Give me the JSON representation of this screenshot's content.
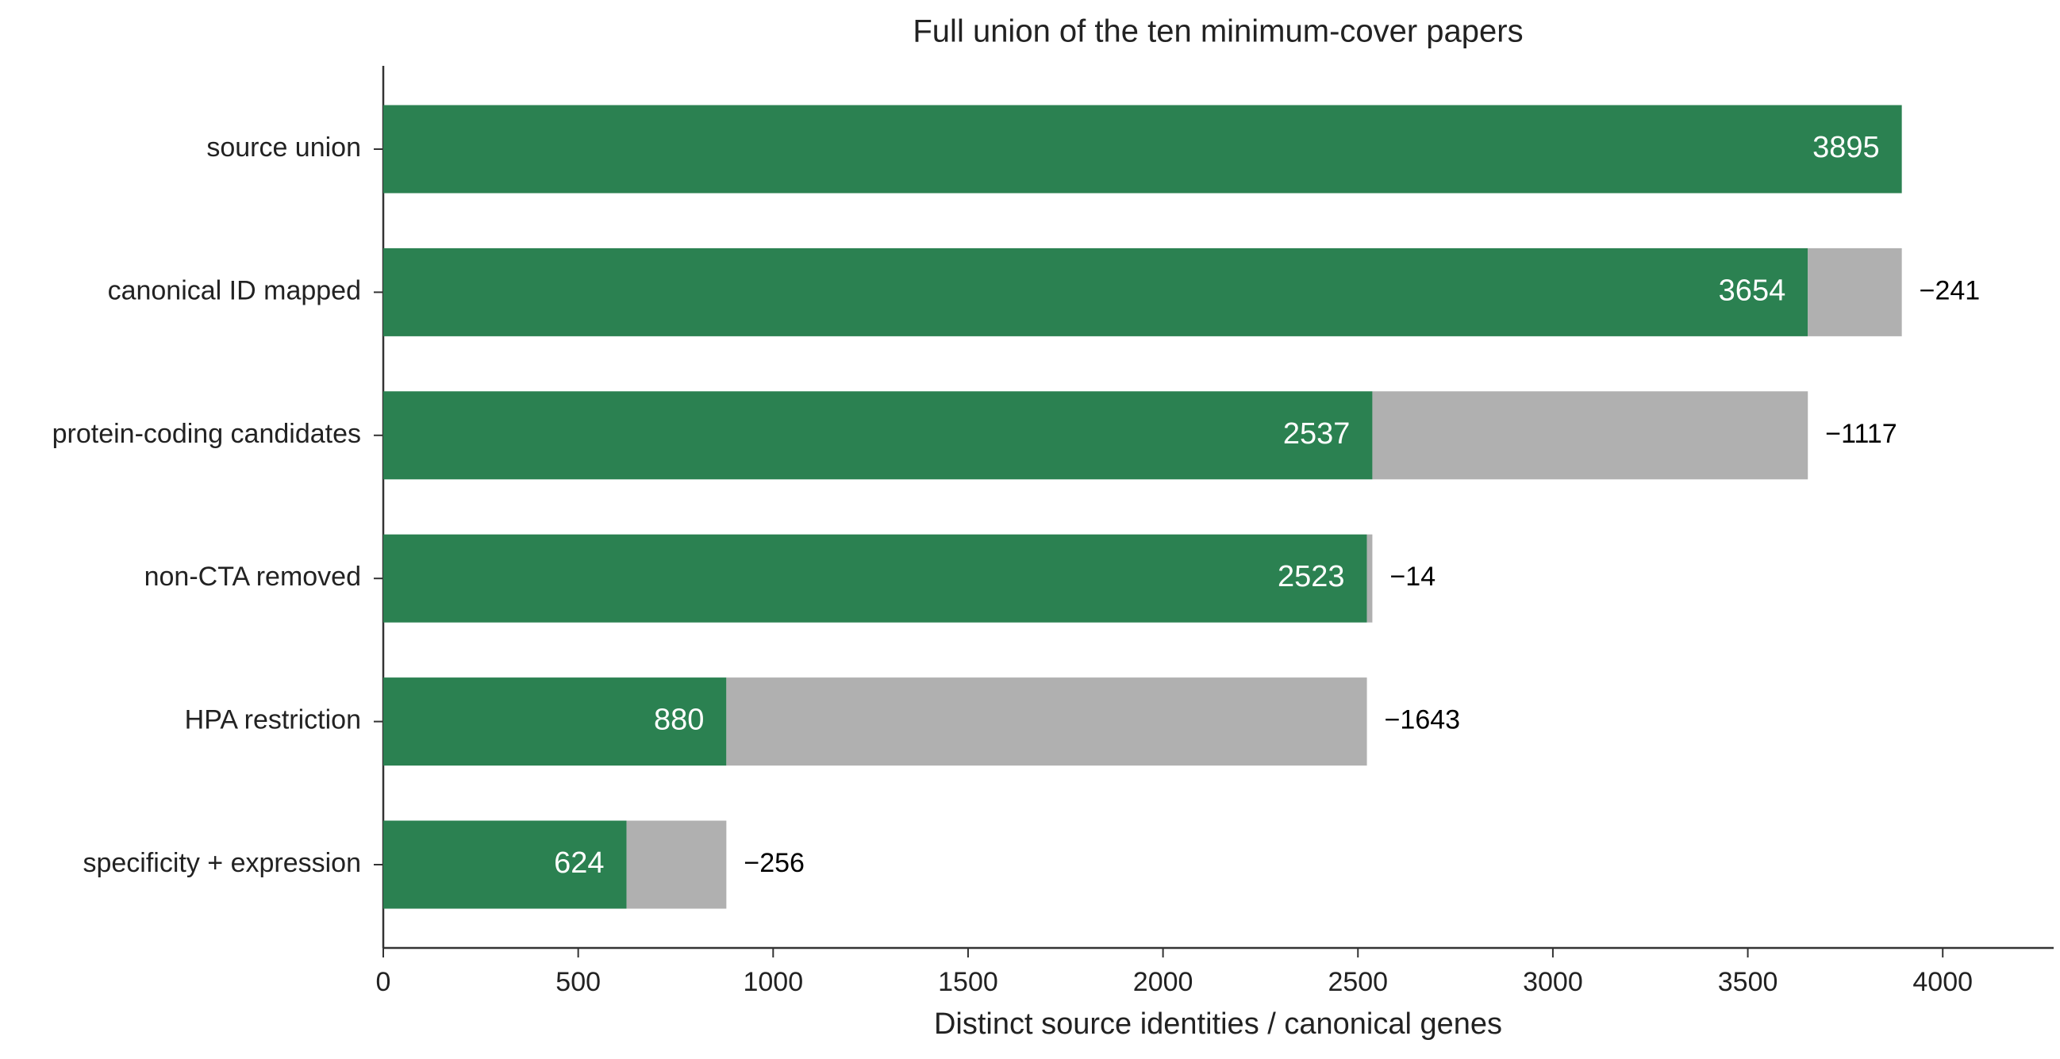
{
  "chart_data": {
    "type": "stacked-barh",
    "title": "Full union of the ten minimum-cover papers",
    "xlabel": "Distinct source identities / canonical genes",
    "categories": [
      "source union",
      "canonical ID mapped",
      "protein-coding candidates",
      "non-CTA removed",
      "HPA restriction",
      "specificity + expression"
    ],
    "series": [
      {
        "color": "#2b8151",
        "values": [
          3895,
          3654,
          2537,
          2523,
          880,
          624
        ]
      },
      {
        "color": "#b0b0b0",
        "values": [
          null,
          241,
          1117,
          14,
          1643,
          256
        ],
        "value_labels": [
          null,
          "−241",
          "−1117",
          "−14",
          "−1643",
          "−256"
        ]
      }
    ],
    "xlim": [
      0,
      4284.5
    ],
    "xticks": [
      0,
      500,
      1000,
      1500,
      2000,
      2500,
      3000,
      3500,
      4000
    ]
  }
}
